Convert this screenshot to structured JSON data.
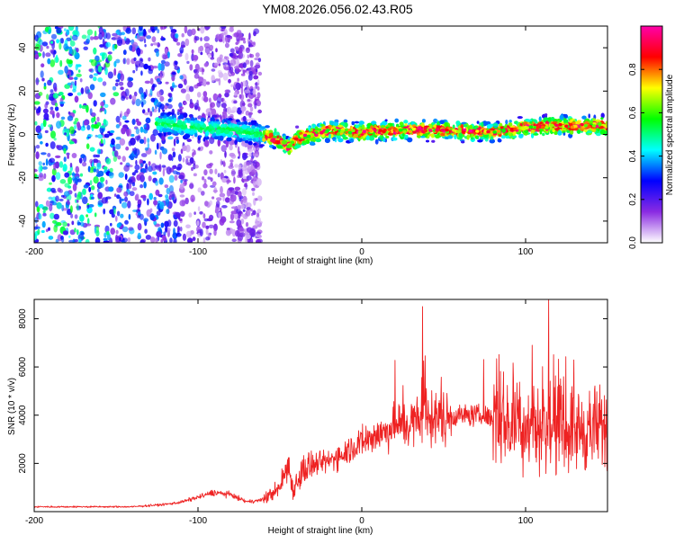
{
  "title": "YM08.2026.056.02.43.R05",
  "chart_data": [
    {
      "type": "heatmap",
      "xlabel": "Height of straight line (km)",
      "ylabel": "Frequency (Hz)",
      "xlim": [
        -200,
        150
      ],
      "ylim": [
        -50,
        50
      ],
      "xticks": [
        -200,
        -100,
        0,
        100
      ],
      "yticks": [
        -40,
        -20,
        0,
        20,
        40
      ],
      "ridge": {
        "x": [
          -120,
          -100,
          -80,
          -60,
          -50,
          -45,
          -40,
          -30,
          -20,
          0,
          20,
          50,
          80,
          100,
          120,
          150
        ],
        "freq": [
          5,
          3,
          2,
          0,
          -3,
          -6,
          -2,
          0,
          2,
          1,
          2,
          2,
          1,
          3,
          4,
          4
        ]
      },
      "colorbar": {
        "label": "Normalized spectral amplitude",
        "range": [
          0,
          1
        ],
        "ticks": [
          "0.0",
          "0.2",
          "0.4",
          "0.6",
          "0.8"
        ],
        "colors": [
          "#ffffff",
          "#8a2be2",
          "#0000ff",
          "#00ffff",
          "#00ff00",
          "#ffff00",
          "#ff0000",
          "#ff00aa"
        ]
      }
    },
    {
      "type": "line",
      "xlabel": "Height of straight line (km)",
      "ylabel": "SNR (10 * v/v)",
      "xlim": [
        -200,
        150
      ],
      "ylim": [
        0,
        8800
      ],
      "xticks": [
        -200,
        -100,
        0,
        100
      ],
      "yticks": [
        2000,
        4000,
        6000,
        8000
      ],
      "color": "#ee2222",
      "series": [
        {
          "name": "SNR",
          "x": [
            -200,
            -180,
            -160,
            -140,
            -120,
            -110,
            -100,
            -90,
            -80,
            -70,
            -60,
            -50,
            -45,
            -42,
            -38,
            -35,
            -30,
            -20,
            -10,
            0,
            10,
            20,
            30,
            40,
            50,
            60,
            70,
            80,
            90,
            100,
            110,
            120,
            130,
            140,
            150
          ],
          "y": [
            200,
            200,
            200,
            200,
            300,
            400,
            600,
            800,
            700,
            400,
            500,
            1000,
            2000,
            900,
            1500,
            1800,
            1900,
            2100,
            2500,
            2900,
            3200,
            3500,
            3700,
            3800,
            3900,
            4000,
            4000,
            3900,
            3700,
            3600,
            3500,
            3500,
            3400,
            3400,
            3400
          ]
        }
      ],
      "peaks": [
        {
          "x": 37,
          "y": 8500
        },
        {
          "x": 114,
          "y": 8800
        },
        {
          "x": 104,
          "y": 6900
        }
      ]
    }
  ]
}
